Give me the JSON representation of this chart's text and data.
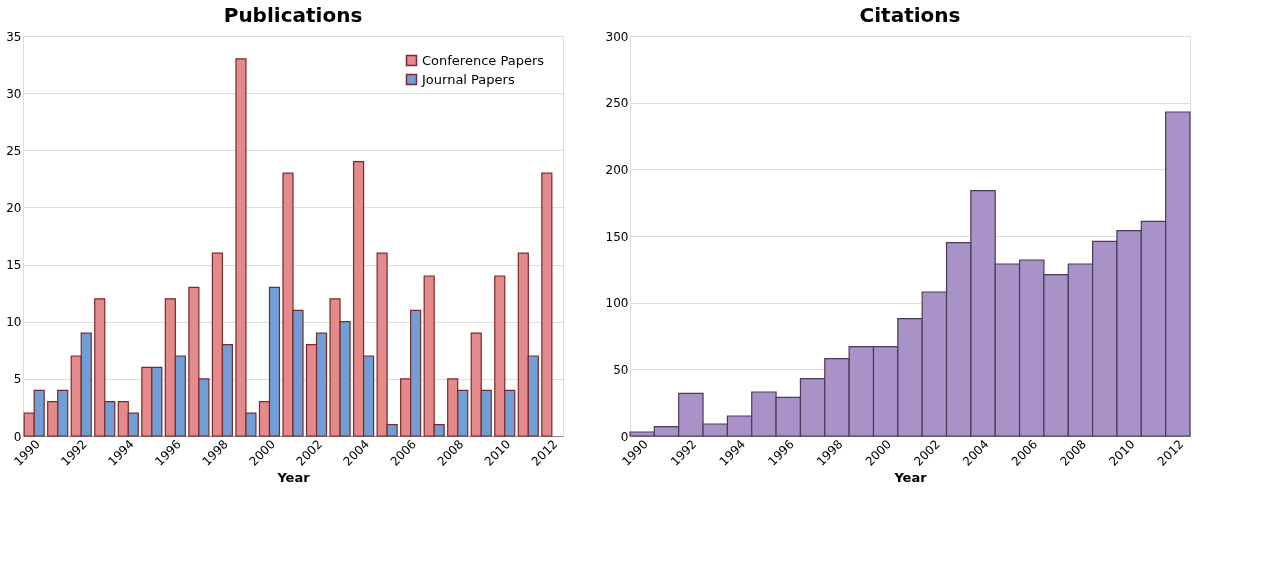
{
  "chart_data": [
    {
      "type": "bar",
      "title": "Publications",
      "xlabel": "Year",
      "categories": [
        "1990",
        null,
        "1992",
        null,
        "1994",
        null,
        "1996",
        null,
        "1998",
        null,
        "2000",
        null,
        "2002",
        null,
        "2004",
        null,
        "2006",
        null,
        "2008",
        null,
        "2010",
        null,
        "2012"
      ],
      "series": [
        {
          "name": "Conference Papers",
          "color": "#e58a8a",
          "values": [
            2,
            3,
            7,
            12,
            3,
            6,
            12,
            13,
            16,
            33,
            3,
            23,
            8,
            12,
            24,
            16,
            5,
            14,
            5,
            9,
            14,
            16,
            23
          ]
        },
        {
          "name": "Journal Papers",
          "color": "#6f9fd6",
          "values": [
            4,
            4,
            9,
            3,
            2,
            6,
            7,
            5,
            8,
            2,
            13,
            11,
            9,
            10,
            7,
            1,
            11,
            1,
            4,
            4,
            4,
            7,
            null
          ]
        }
      ],
      "ylim": [
        0,
        35
      ],
      "yticks": [
        0,
        5,
        10,
        15,
        20,
        25,
        30,
        35
      ],
      "grid": "y",
      "legend": "top right"
    },
    {
      "type": "bar",
      "title": "Citations",
      "xlabel": "Year",
      "categories": [
        "1990",
        null,
        "1992",
        null,
        "1994",
        null,
        "1996",
        null,
        "1998",
        null,
        "2000",
        null,
        "2002",
        null,
        "2004",
        null,
        "2006",
        null,
        "2008",
        null,
        "2010",
        null,
        "2012"
      ],
      "series": [
        {
          "color": "#a892c8",
          "values": [
            3,
            7,
            32,
            9,
            15,
            33,
            29,
            43,
            58,
            67,
            67,
            88,
            108,
            145,
            184,
            129,
            132,
            121,
            129,
            146,
            154,
            161,
            243
          ]
        }
      ],
      "ylim": [
        0,
        300
      ],
      "yticks": [
        0,
        50,
        100,
        150,
        200,
        250,
        300
      ],
      "grid": "y",
      "legend": false
    }
  ]
}
